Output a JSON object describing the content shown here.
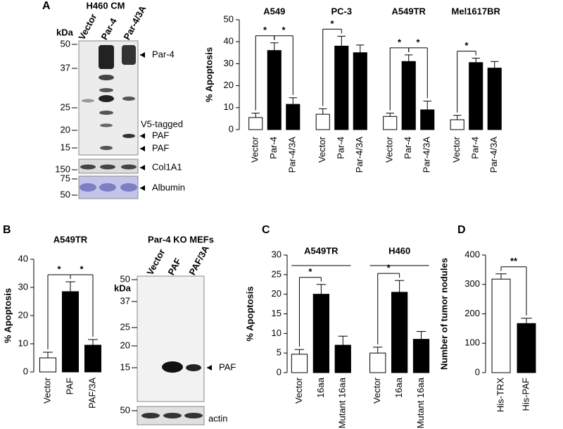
{
  "panels": [
    "A",
    "B",
    "C",
    "D"
  ],
  "blots": [
    {
      "title": "H460 CM",
      "kda": "kDa",
      "lanes": [
        "Vector",
        "Par-4",
        "Par-4/3A"
      ],
      "markers": [
        50,
        37,
        25,
        20,
        15,
        150,
        75,
        50
      ],
      "labels": [
        "Par-4",
        "V5-tagged",
        "PAF",
        "PAF",
        "Col1A1",
        "Albumin"
      ]
    },
    {
      "title": "Par-4 KO MEFs",
      "kda": "kDa",
      "lanes": [
        "Vector",
        "PAF",
        "PAF/3A"
      ],
      "markers": [
        50,
        37,
        25,
        20,
        15,
        50
      ],
      "labels": [
        "PAF",
        "actin"
      ]
    }
  ],
  "chart_data": [
    {
      "type": "bar",
      "y_label": "% Apoptosis",
      "ylim": [
        0,
        50
      ],
      "yticks": [
        0,
        10,
        20,
        30,
        40,
        50
      ],
      "colors": [
        "#ffffff",
        "#000000",
        "#000000"
      ],
      "groups": [
        {
          "name": "A549",
          "categories": [
            "Vector",
            "Par-4",
            "Par-4/3A"
          ],
          "values": [
            5.5,
            36,
            11.5
          ],
          "errors": [
            2,
            3.5,
            3
          ],
          "significance": [
            {
              "label": "*",
              "from": "Vector",
              "to": "Par-4"
            },
            {
              "label": "*",
              "from": "Par-4",
              "to": "Par-4/3A"
            }
          ]
        },
        {
          "name": "PC-3",
          "categories": [
            "Vector",
            "Par-4",
            "Par-4/3A"
          ],
          "values": [
            7,
            38,
            35
          ],
          "errors": [
            2.5,
            4.5,
            3.5
          ],
          "significance": [
            {
              "label": "*",
              "from": "Vector",
              "to": "Par-4"
            }
          ]
        },
        {
          "name": "A549TR",
          "categories": [
            "Vector",
            "Par-4",
            "Par-4/3A"
          ],
          "values": [
            6,
            31,
            9
          ],
          "errors": [
            1.5,
            3,
            4
          ],
          "significance": [
            {
              "label": "*",
              "from": "Vector",
              "to": "Par-4"
            },
            {
              "label": "*",
              "from": "Par-4",
              "to": "Par-4/3A"
            }
          ]
        },
        {
          "name": "Mel1617BR",
          "categories": [
            "Vector",
            "Par-4",
            "Par-4/3A"
          ],
          "values": [
            4.5,
            30.5,
            28
          ],
          "errors": [
            2,
            2,
            3
          ],
          "significance": [
            {
              "label": "*",
              "from": "Vector",
              "to": "Par-4"
            }
          ]
        }
      ]
    },
    {
      "type": "bar",
      "y_label": "% Apoptosis",
      "ylim": [
        0,
        40
      ],
      "yticks": [
        0,
        10,
        20,
        30,
        40
      ],
      "colors": [
        "#ffffff",
        "#000000",
        "#000000"
      ],
      "groups": [
        {
          "name": "A549TR",
          "categories": [
            "Vector",
            "PAF",
            "PAF/3A"
          ],
          "values": [
            5,
            28.5,
            9.5
          ],
          "errors": [
            2,
            3.5,
            2
          ],
          "significance": [
            {
              "label": "*",
              "from": "Vector",
              "to": "PAF"
            },
            {
              "label": "*",
              "from": "PAF",
              "to": "PAF/3A"
            }
          ]
        }
      ]
    },
    {
      "type": "bar",
      "y_label": "% Apoptosis",
      "ylim": [
        0,
        30
      ],
      "yticks": [
        0,
        5,
        10,
        15,
        20,
        25,
        30
      ],
      "colors": [
        "#ffffff",
        "#000000",
        "#000000"
      ],
      "group_lines": true,
      "groups": [
        {
          "name": "A549TR",
          "categories": [
            "Vector",
            "16aa",
            "Mutant 16aa"
          ],
          "values": [
            4.7,
            20,
            7
          ],
          "errors": [
            1.2,
            2.5,
            2.3
          ],
          "significance": [
            {
              "label": "*",
              "from": "Vector",
              "to": "16aa"
            }
          ]
        },
        {
          "name": "H460",
          "categories": [
            "Vector",
            "16aa",
            "Mutant 16aa"
          ],
          "values": [
            5,
            20.5,
            8.5
          ],
          "errors": [
            1.5,
            3,
            2
          ],
          "significance": [
            {
              "label": "*",
              "from": "Vector",
              "to": "16aa"
            }
          ]
        }
      ]
    },
    {
      "type": "bar",
      "y_label": "Number of tumor nodules",
      "ylim": [
        0,
        400
      ],
      "yticks": [
        0,
        100,
        200,
        300,
        400
      ],
      "colors": [
        "#ffffff",
        "#000000"
      ],
      "groups": [
        {
          "categories": [
            "His-TRX",
            "His-PAF"
          ],
          "values": [
            318,
            167
          ],
          "errors": [
            18,
            18
          ],
          "significance": [
            {
              "label": "**",
              "from": "His-TRX",
              "to": "His-PAF"
            }
          ]
        }
      ]
    }
  ]
}
